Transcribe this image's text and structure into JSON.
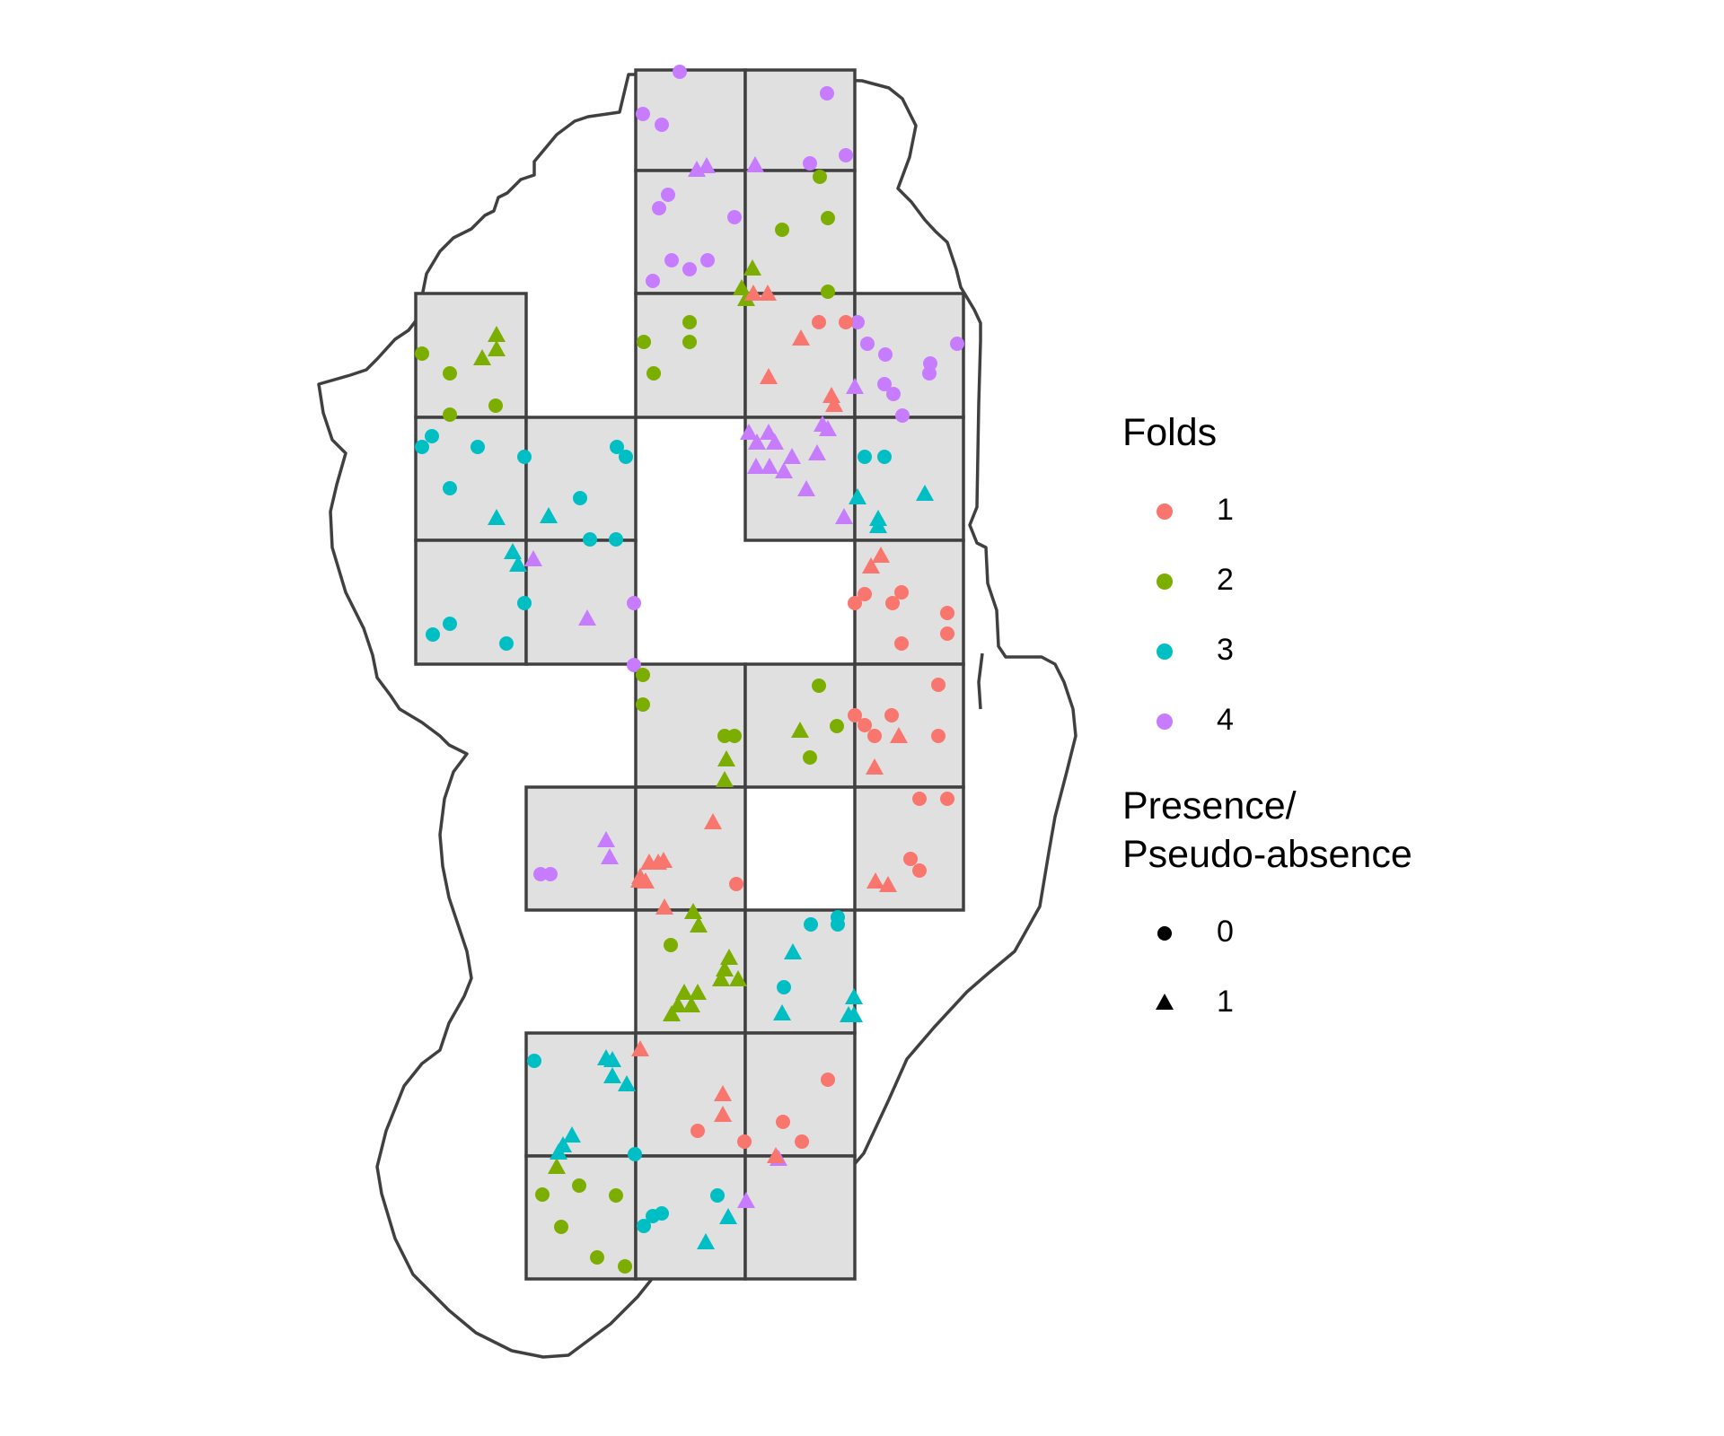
{
  "legend": {
    "folds": {
      "title": "Folds",
      "items": [
        {
          "label": "1",
          "color": "#F8766D"
        },
        {
          "label": "2",
          "color": "#7CAE00"
        },
        {
          "label": "3",
          "color": "#00BFC4"
        },
        {
          "label": "4",
          "color": "#C77CFF"
        }
      ]
    },
    "presence": {
      "title": "Presence/\nPseudo-absence",
      "items": [
        {
          "label": "0",
          "shape": "circle"
        },
        {
          "label": "1",
          "shape": "triangle"
        }
      ]
    }
  },
  "colors": {
    "block_fill": "#e0e0e0",
    "block_stroke": "#404040",
    "outline_stroke": "#404040"
  }
}
